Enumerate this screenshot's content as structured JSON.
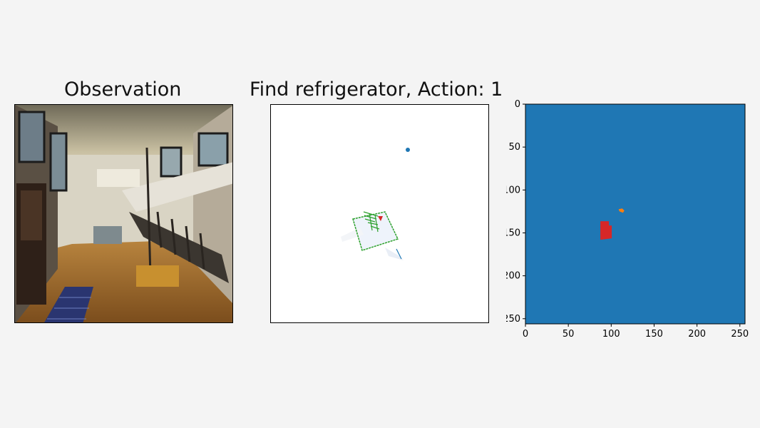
{
  "figure": {
    "panel1_title": "Observation",
    "panel2_title": "Find refrigerator, Action: 1",
    "panel3_title": ""
  },
  "segmentation_panel": {
    "x_ticks": [
      "0",
      "50",
      "100",
      "150",
      "200",
      "250"
    ],
    "y_ticks": [
      "0",
      "50",
      "100",
      "150",
      "200",
      "250"
    ],
    "x_range": [
      0,
      256
    ],
    "y_range": [
      0,
      256
    ],
    "background_color": "#1f77b4",
    "regions": [
      {
        "color": "#d62728",
        "center": [
          94,
          148
        ]
      },
      {
        "color": "#ff7f0e",
        "center": [
          112,
          124
        ]
      }
    ]
  },
  "map_panel": {
    "goal_marker_color": "#1f77b4",
    "agent_marker_color": "#d62728",
    "explored_color": "#2ca02c"
  }
}
